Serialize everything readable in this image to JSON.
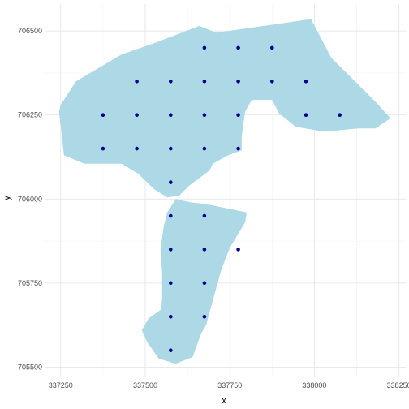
{
  "chart_data": {
    "type": "scatter",
    "xlabel": "x",
    "ylabel": "y",
    "xlim": [
      337205,
      338270
    ],
    "ylim": [
      705472,
      706580
    ],
    "x_ticks": [
      337250,
      337500,
      337750,
      338000,
      338250
    ],
    "y_ticks": [
      705500,
      705750,
      706000,
      706250,
      706500
    ],
    "x_tick_labels": [
      "337250",
      "337500",
      "337750",
      "338000",
      "338250"
    ],
    "y_tick_labels": [
      "705500",
      "705750",
      "706000",
      "706250",
      "706500"
    ],
    "x_minor_ticks": [
      337375,
      337625,
      337875,
      338125
    ],
    "y_minor_ticks": [
      705625,
      705875,
      706125,
      706375
    ],
    "grid": true,
    "colors": {
      "polygon_fill": "#add8e6",
      "point": "#00008b",
      "grid_major": "#e6e6e6",
      "grid_minor": "#f2f2f2"
    },
    "area_polygons": [
      [
        [
          337250,
          706280
        ],
        [
          337295,
          706350
        ],
        [
          337430,
          706430
        ],
        [
          337530,
          706465
        ],
        [
          337660,
          706515
        ],
        [
          337710,
          706495
        ],
        [
          337990,
          706535
        ],
        [
          338050,
          706420
        ],
        [
          338180,
          706290
        ],
        [
          338225,
          706240
        ],
        [
          338180,
          706210
        ],
        [
          338130,
          706210
        ],
        [
          338080,
          706205
        ],
        [
          338030,
          706200
        ],
        [
          337945,
          706215
        ],
        [
          337895,
          706255
        ],
        [
          337875,
          706295
        ],
        [
          337815,
          706295
        ],
        [
          337795,
          706260
        ],
        [
          337785,
          706185
        ],
        [
          337785,
          706145
        ],
        [
          337745,
          706130
        ],
        [
          337700,
          706105
        ],
        [
          337690,
          706085
        ],
        [
          337630,
          706040
        ],
        [
          337600,
          706010
        ],
        [
          337565,
          706005
        ],
        [
          337525,
          706030
        ],
        [
          337480,
          706075
        ],
        [
          337430,
          706105
        ],
        [
          337320,
          706105
        ],
        [
          337260,
          706130
        ],
        [
          337245,
          706260
        ]
      ],
      [
        [
          337590,
          706000
        ],
        [
          337635,
          705990
        ],
        [
          337680,
          705985
        ],
        [
          337800,
          705960
        ],
        [
          337795,
          705930
        ],
        [
          337750,
          705855
        ],
        [
          337725,
          705790
        ],
        [
          337700,
          705700
        ],
        [
          337680,
          705625
        ],
        [
          337665,
          705600
        ],
        [
          337640,
          705530
        ],
        [
          337590,
          705510
        ],
        [
          337540,
          705525
        ],
        [
          337505,
          705575
        ],
        [
          337490,
          705610
        ],
        [
          337510,
          705645
        ],
        [
          337545,
          705670
        ],
        [
          337550,
          705700
        ],
        [
          337550,
          705780
        ],
        [
          337545,
          705850
        ],
        [
          337555,
          705920
        ],
        [
          337565,
          705960
        ]
      ]
    ],
    "points": [
      [
        337675,
        706450
      ],
      [
        337775,
        706450
      ],
      [
        337875,
        706450
      ],
      [
        337475,
        706350
      ],
      [
        337575,
        706350
      ],
      [
        337675,
        706350
      ],
      [
        337775,
        706350
      ],
      [
        337875,
        706350
      ],
      [
        337975,
        706350
      ],
      [
        337375,
        706250
      ],
      [
        337475,
        706250
      ],
      [
        337575,
        706250
      ],
      [
        337675,
        706250
      ],
      [
        337775,
        706250
      ],
      [
        337975,
        706250
      ],
      [
        338075,
        706250
      ],
      [
        337375,
        706150
      ],
      [
        337475,
        706150
      ],
      [
        337575,
        706150
      ],
      [
        337675,
        706150
      ],
      [
        337775,
        706150
      ],
      [
        337575,
        706050
      ],
      [
        337575,
        705950
      ],
      [
        337675,
        705950
      ],
      [
        337575,
        705850
      ],
      [
        337675,
        705850
      ],
      [
        337775,
        705850
      ],
      [
        337575,
        705750
      ],
      [
        337675,
        705750
      ],
      [
        337575,
        705650
      ],
      [
        337675,
        705650
      ],
      [
        337575,
        705550
      ]
    ]
  }
}
